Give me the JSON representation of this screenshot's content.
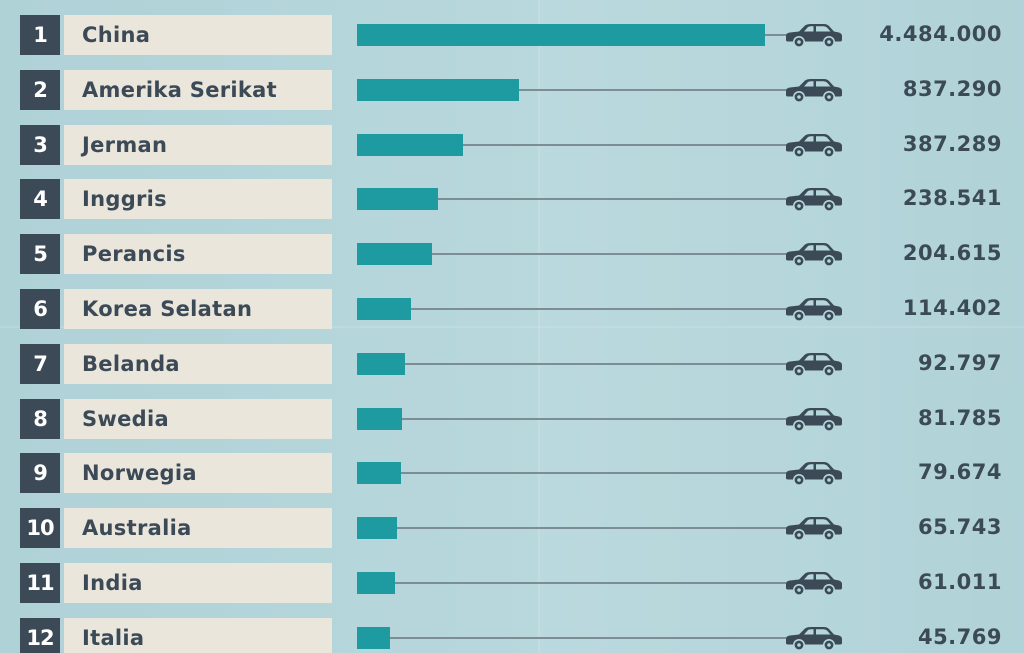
{
  "colors": {
    "background": "#b5d6db",
    "bar": "#1e9ba0",
    "rank_box": "#3b4a56",
    "label_box": "#eae6dc",
    "text": "#3b4a56",
    "track": "#7c8d94"
  },
  "icon": "car-icon",
  "chart_data": {
    "type": "bar",
    "orientation": "horizontal",
    "title": "",
    "xlabel": "",
    "ylabel": "",
    "ranks": [
      "1",
      "2",
      "3",
      "4",
      "5",
      "6",
      "7",
      "8",
      "9",
      "10",
      "11",
      "12"
    ],
    "categories": [
      "China",
      "Amerika Serikat",
      "Jerman",
      "Inggris",
      "Perancis",
      "Korea Selatan",
      "Belanda",
      "Swedia",
      "Norwegia",
      "Australia",
      "India",
      "Italia"
    ],
    "values": [
      4484000,
      837290,
      387289,
      238541,
      204615,
      114402,
      92797,
      81785,
      79674,
      65743,
      61011,
      45769
    ],
    "value_labels": [
      "4.484.000",
      "837.290",
      "387.289",
      "238.541",
      "204.615",
      "114.402",
      "92.797",
      "81.785",
      "79.674",
      "65.743",
      "61.011",
      "45.769"
    ],
    "scale": "non-linear"
  }
}
